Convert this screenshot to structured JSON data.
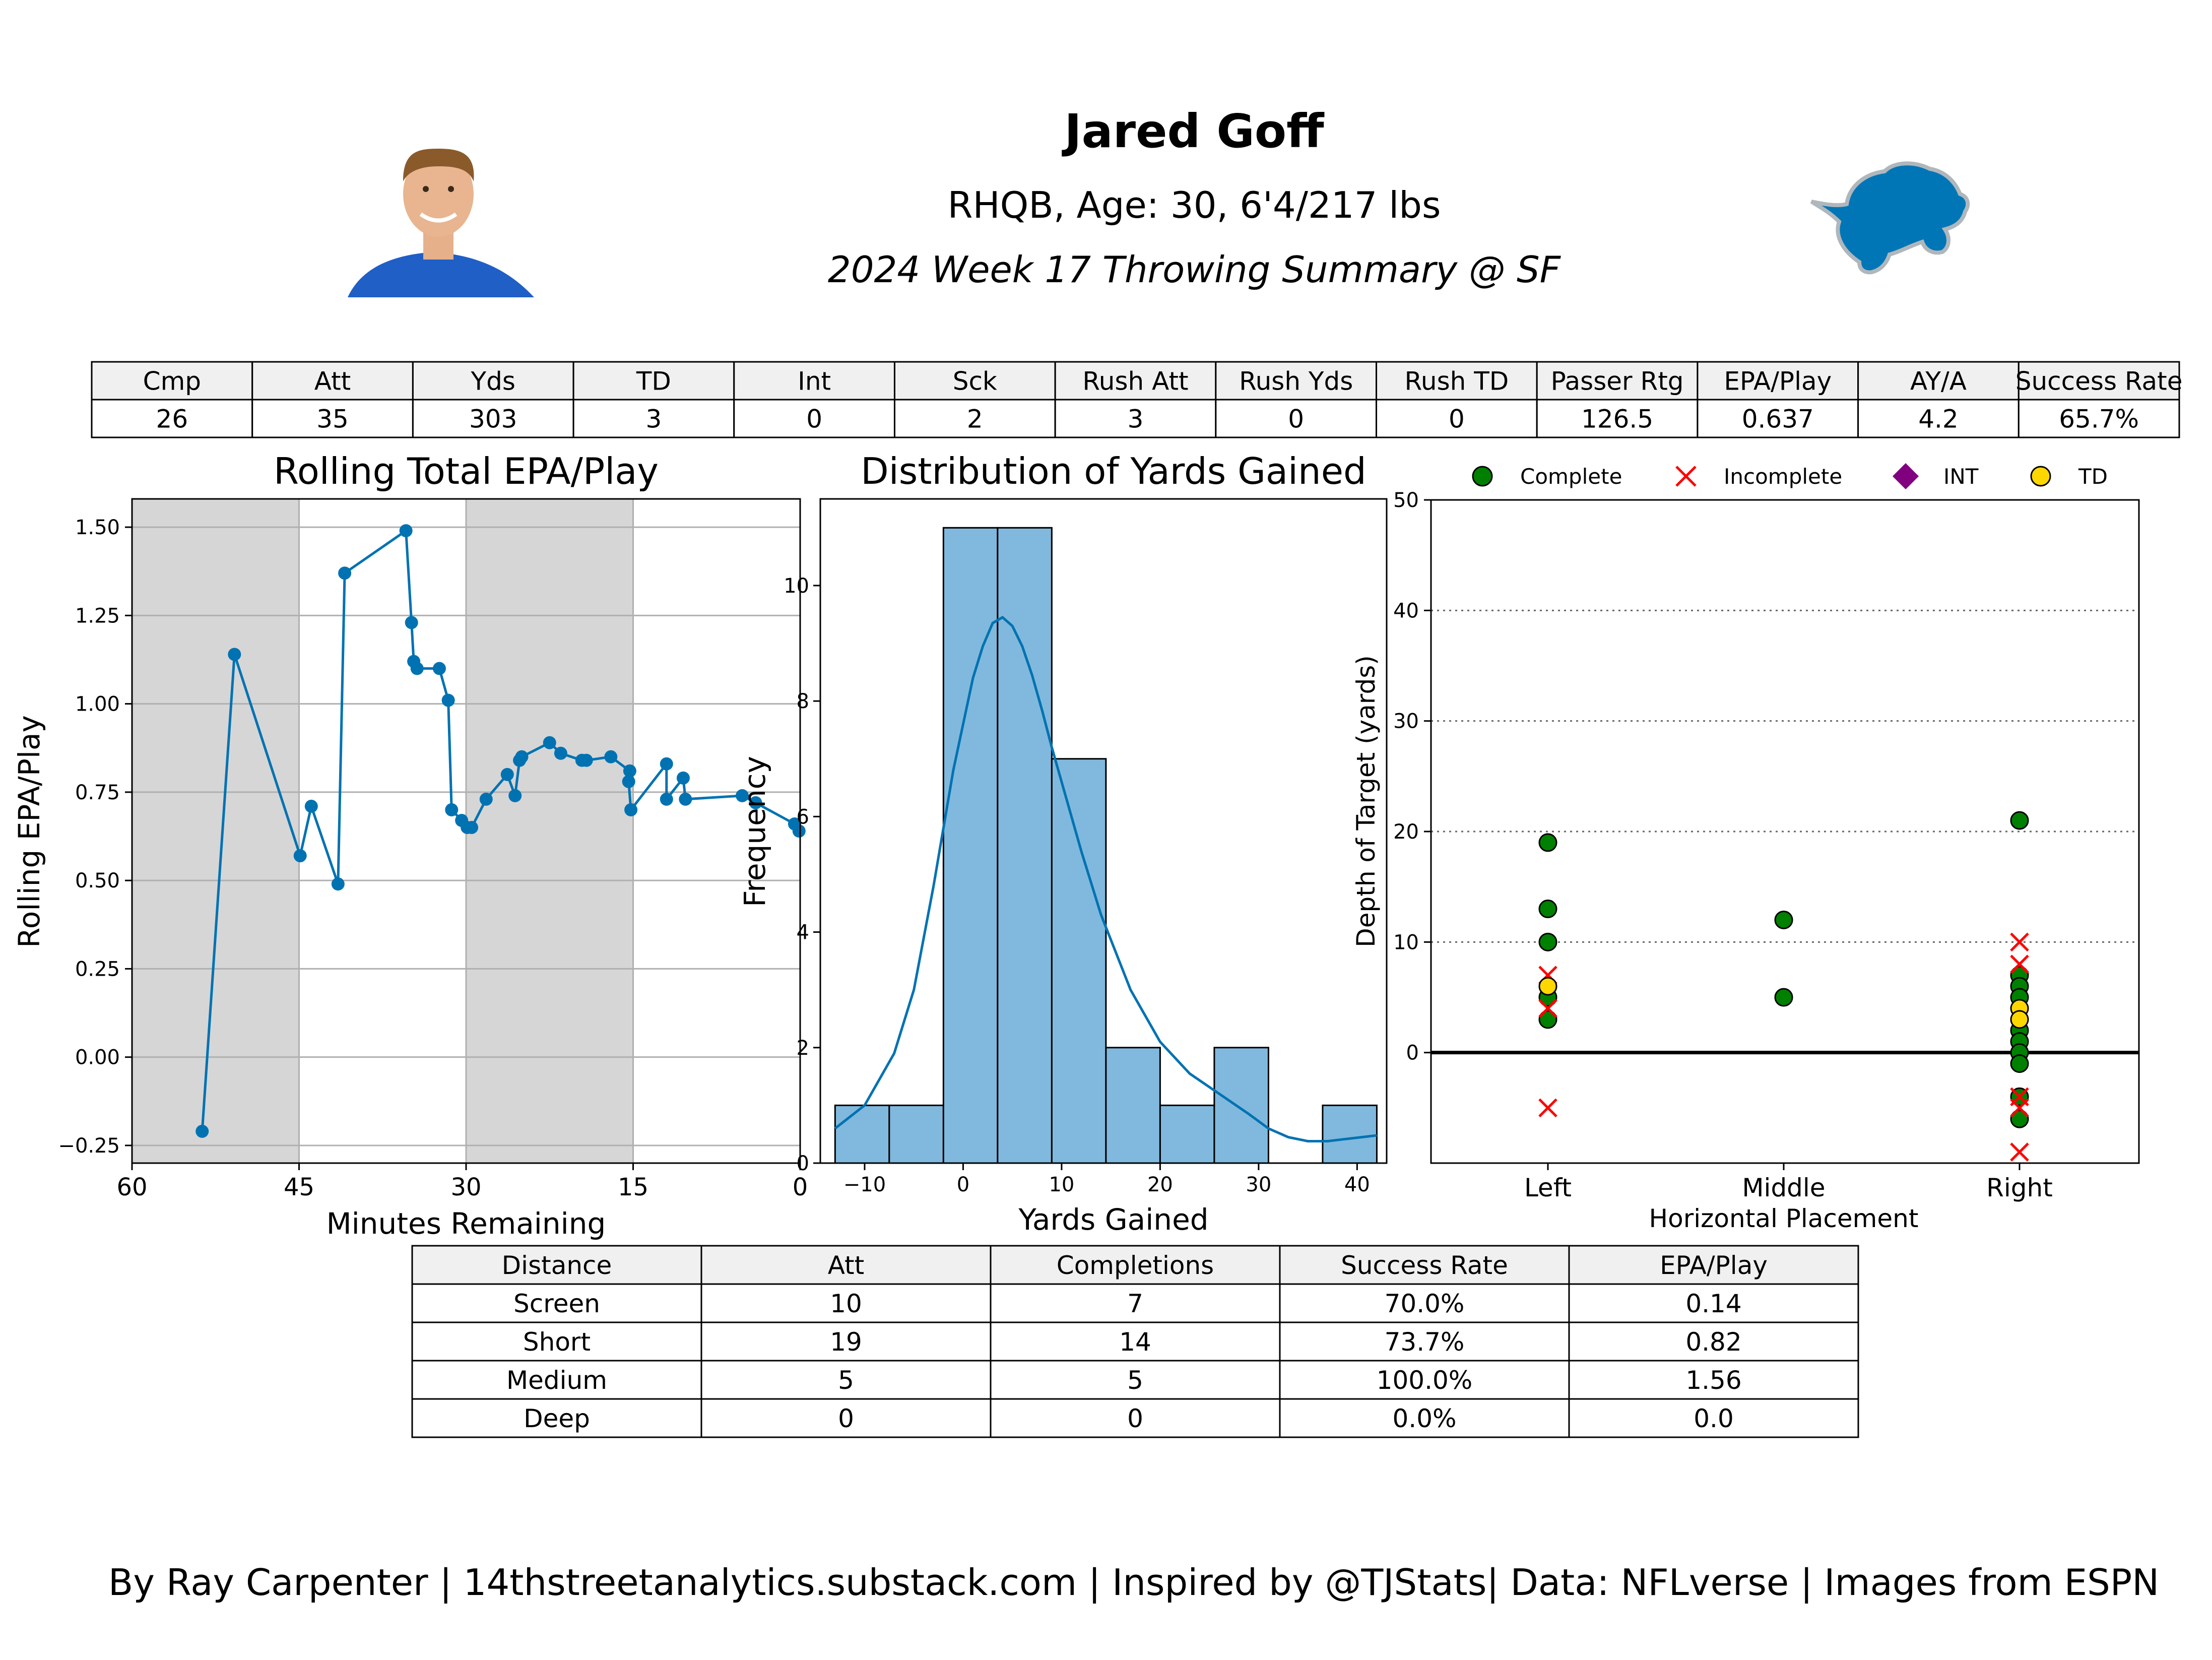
{
  "header": {
    "name": "Jared Goff",
    "subtitle": "RHQB, Age: 30, 6'4/217 lbs",
    "summary": "2024 Week 17 Throwing Summary @ SF"
  },
  "colors": {
    "line": "#0072b2",
    "bar_fill": "#80b9dd",
    "shade": "#d6d6d6",
    "complete": "#008000",
    "incomplete": "#ff0000",
    "int": "#800080",
    "td": "#ffd700",
    "lions_blue": "#0076b6",
    "lions_silver": "#b0b7bc",
    "table_header_bg": "#f0f0f0"
  },
  "stats_table": {
    "headers": [
      "Cmp",
      "Att",
      "Yds",
      "TD",
      "Int",
      "Sck",
      "Rush Att",
      "Rush Yds",
      "Rush TD",
      "Passer Rtg",
      "EPA/Play",
      "AY/A",
      "Success Rate"
    ],
    "values": [
      "26",
      "35",
      "303",
      "3",
      "0",
      "2",
      "3",
      "0",
      "0",
      "126.5",
      "0.637",
      "4.2",
      "65.7%"
    ]
  },
  "distance_table": {
    "headers": [
      "Distance",
      "Att",
      "Completions",
      "Success Rate",
      "EPA/Play"
    ],
    "rows": [
      [
        "Screen",
        "10",
        "7",
        "70.0%",
        "0.14"
      ],
      [
        "Short",
        "19",
        "14",
        "73.7%",
        "0.82"
      ],
      [
        "Medium",
        "5",
        "5",
        "100.0%",
        "1.56"
      ],
      [
        "Deep",
        "0",
        "0",
        "0.0%",
        "0.0"
      ]
    ]
  },
  "chart_data": [
    {
      "type": "line",
      "title": "Rolling Total EPA/Play",
      "xlabel": "Minutes Remaining",
      "ylabel": "Rolling EPA/Play",
      "xlim": [
        60,
        0
      ],
      "ylim": [
        -0.3,
        1.58
      ],
      "xticks": [
        "60",
        "45",
        "30",
        "15",
        "0"
      ],
      "yticks": [
        "−0.25",
        "0.00",
        "0.25",
        "0.50",
        "0.75",
        "1.00",
        "1.25",
        "1.50"
      ],
      "shaded_quarters": [
        [
          60,
          45
        ],
        [
          30,
          15
        ]
      ],
      "grid": true,
      "x": [
        53.7,
        50.8,
        44.9,
        43.9,
        41.5,
        40.9,
        35.4,
        34.9,
        34.7,
        34.4,
        32.4,
        31.6,
        31.3,
        30.4,
        29.9,
        29.5,
        28.2,
        26.3,
        25.6,
        25.2,
        25.0,
        22.5,
        21.5,
        19.6,
        19.2,
        17.0,
        15.3,
        15.4,
        15.2,
        12.0,
        12.0,
        10.5,
        10.3,
        5.2,
        4.0,
        0.5,
        0.1
      ],
      "y": [
        -0.21,
        1.14,
        0.57,
        0.71,
        0.49,
        1.37,
        1.49,
        1.23,
        1.12,
        1.1,
        1.1,
        1.01,
        0.7,
        0.67,
        0.65,
        0.65,
        0.73,
        0.8,
        0.74,
        0.84,
        0.85,
        0.89,
        0.86,
        0.84,
        0.84,
        0.85,
        0.81,
        0.78,
        0.7,
        0.83,
        0.73,
        0.79,
        0.73,
        0.74,
        0.72,
        0.66,
        0.64
      ]
    },
    {
      "type": "bar",
      "title": "Distribution of Yards Gained",
      "xlabel": "Yards Gained",
      "ylabel": "Frequency",
      "xlim": [
        -14.5,
        43
      ],
      "ylim": [
        0,
        11.5
      ],
      "xticks": [
        "−10",
        "0",
        "10",
        "20",
        "30",
        "40"
      ],
      "yticks": [
        "0",
        "2",
        "4",
        "6",
        "8",
        "10"
      ],
      "bin_edges": [
        -13,
        -7.5,
        -2,
        3.5,
        9,
        14.5,
        20,
        25.5,
        31,
        36.5,
        42
      ],
      "values": [
        1,
        1,
        11,
        11,
        7,
        2,
        1,
        2,
        0,
        1
      ],
      "kde": {
        "x": [
          -13,
          -10,
          -7,
          -5,
          -3,
          -1,
          1,
          2,
          3,
          4,
          5,
          6,
          7,
          8,
          9,
          10,
          12,
          14,
          17,
          20,
          23,
          26,
          29,
          31,
          33,
          35,
          37,
          39,
          42
        ],
        "y": [
          0.6,
          1.0,
          1.9,
          3.0,
          4.8,
          6.8,
          8.4,
          8.95,
          9.35,
          9.45,
          9.3,
          8.95,
          8.45,
          7.85,
          7.2,
          6.6,
          5.4,
          4.3,
          3.0,
          2.1,
          1.55,
          1.2,
          0.85,
          0.6,
          0.45,
          0.38,
          0.38,
          0.42,
          0.48
        ]
      }
    },
    {
      "type": "scatter",
      "xlabel": "Horizontal Placement",
      "ylabel": "Depth of Target (yards)",
      "categories": [
        "Left",
        "Middle",
        "Right"
      ],
      "ylim": [
        -10,
        50
      ],
      "yticks": [
        "0",
        "10",
        "20",
        "30",
        "40",
        "50"
      ],
      "grid": true,
      "legend": [
        "Complete",
        "Incomplete",
        "INT",
        "TD"
      ],
      "legend_placement": "top",
      "series": [
        {
          "name": "Complete",
          "points": [
            [
              "Left",
              19
            ],
            [
              "Left",
              13
            ],
            [
              "Left",
              10
            ],
            [
              "Left",
              5
            ],
            [
              "Left",
              3
            ],
            [
              "Middle",
              12
            ],
            [
              "Middle",
              5
            ],
            [
              "Right",
              21
            ],
            [
              "Right",
              7
            ],
            [
              "Right",
              6
            ],
            [
              "Right",
              5
            ],
            [
              "Right",
              2
            ],
            [
              "Right",
              1
            ],
            [
              "Right",
              0
            ],
            [
              "Right",
              -1
            ],
            [
              "Right",
              -4
            ],
            [
              "Right",
              -6
            ]
          ]
        },
        {
          "name": "Incomplete",
          "points": [
            [
              "Left",
              7
            ],
            [
              "Left",
              4
            ],
            [
              "Left",
              -5
            ],
            [
              "Right",
              10
            ],
            [
              "Right",
              8
            ],
            [
              "Right",
              -4
            ],
            [
              "Right",
              -5
            ],
            [
              "Right",
              -9
            ]
          ]
        },
        {
          "name": "INT",
          "points": []
        },
        {
          "name": "TD",
          "points": [
            [
              "Left",
              6
            ],
            [
              "Right",
              4
            ],
            [
              "Right",
              3
            ]
          ]
        }
      ]
    }
  ],
  "footer": {
    "credit": "By Ray Carpenter | 14thstreetanalytics.substack.com | Inspired by @TJStats| Data: NFLverse | Images from ESPN"
  }
}
